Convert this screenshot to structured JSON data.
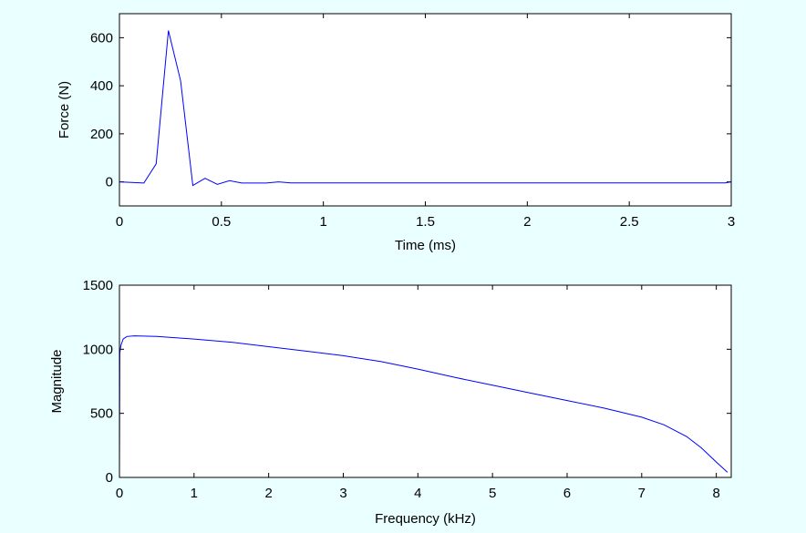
{
  "figure": {
    "background": "#eaffff",
    "line_color": "#0000ff"
  },
  "chart_data": [
    {
      "type": "line",
      "xlabel": "Time (ms)",
      "ylabel": "Force (N)",
      "xlim": [
        0,
        3
      ],
      "ylim": [
        -100,
        700
      ],
      "xticks": [
        0,
        0.5,
        1,
        1.5,
        2,
        2.5,
        3
      ],
      "xtick_labels": [
        "0",
        "0.5",
        "1",
        "1.5",
        "2",
        "2.5",
        "3"
      ],
      "yticks": [
        0,
        200,
        400,
        600
      ],
      "ytick_labels": [
        "0",
        "200",
        "400",
        "600"
      ],
      "grid": false,
      "series": [
        {
          "x": [
            0,
            0.06,
            0.12,
            0.18,
            0.24,
            0.3,
            0.36,
            0.42,
            0.48,
            0.54,
            0.6,
            0.66,
            0.72,
            0.78,
            0.84,
            0.9,
            1.0,
            1.5,
            2.0,
            2.5,
            2.97,
            3.0
          ],
          "y": [
            0,
            -2,
            -5,
            75,
            630,
            420,
            -15,
            15,
            -10,
            5,
            -5,
            -5,
            -5,
            0,
            -4,
            -4,
            -4,
            -4,
            -4,
            -4,
            -4,
            0
          ]
        }
      ]
    },
    {
      "type": "line",
      "xlabel": "Frequency (kHz)",
      "ylabel": "Magnitude",
      "xlim": [
        0,
        8.2
      ],
      "ylim": [
        0,
        1500
      ],
      "xticks": [
        0,
        1,
        2,
        3,
        4,
        5,
        6,
        7,
        8
      ],
      "xtick_labels": [
        "0",
        "1",
        "2",
        "3",
        "4",
        "5",
        "6",
        "7",
        "8"
      ],
      "yticks": [
        0,
        500,
        1000,
        1500
      ],
      "ytick_labels": [
        "0",
        "500",
        "1000",
        "1500"
      ],
      "grid": false,
      "series": [
        {
          "x": [
            0,
            0.005,
            0.02,
            0.05,
            0.1,
            0.2,
            0.5,
            1.0,
            1.5,
            2.0,
            2.5,
            3.0,
            3.5,
            4.0,
            4.5,
            5.0,
            5.5,
            6.0,
            6.5,
            7.0,
            7.3,
            7.6,
            7.8,
            8.0,
            8.15
          ],
          "y": [
            50,
            970,
            1030,
            1080,
            1100,
            1105,
            1100,
            1080,
            1055,
            1020,
            985,
            950,
            905,
            845,
            780,
            720,
            660,
            600,
            540,
            470,
            410,
            320,
            230,
            120,
            40
          ]
        }
      ]
    }
  ]
}
